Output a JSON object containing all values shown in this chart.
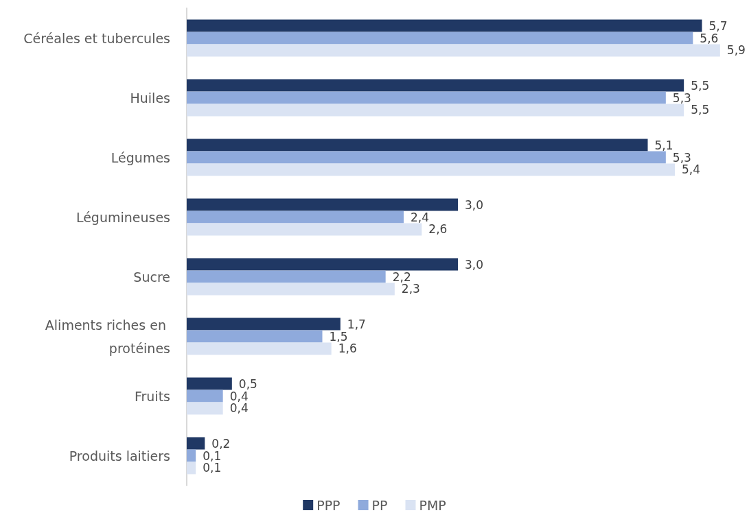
{
  "chart_data": {
    "type": "bar",
    "orientation": "horizontal",
    "legend": "bottom",
    "categories": [
      "Céréales et tubercules",
      "Huiles",
      "Légumes",
      "Légumineuses",
      "Sucre",
      "Aliments riches en protéines",
      "Fruits",
      "Produits laitiers"
    ],
    "series": [
      {
        "name": "PPP",
        "color": "#203864",
        "values": [
          5.7,
          5.5,
          5.1,
          3.0,
          3.0,
          1.7,
          0.5,
          0.2
        ],
        "value_labels": [
          "5,7",
          "5,5",
          "5,1",
          "3,0",
          "3,0",
          "1,7",
          "0,5",
          "0,2"
        ]
      },
      {
        "name": "PP",
        "color": "#8faadc",
        "values": [
          5.6,
          5.3,
          5.3,
          2.4,
          2.2,
          1.5,
          0.4,
          0.1
        ],
        "value_labels": [
          "5,6",
          "5,3",
          "5,3",
          "2,4",
          "2,2",
          "1,5",
          "0,4",
          "0,1"
        ]
      },
      {
        "name": "PMP",
        "color": "#dae3f3",
        "values": [
          5.9,
          5.5,
          5.4,
          2.6,
          2.3,
          1.6,
          0.4,
          0.1
        ],
        "value_labels": [
          "5,9",
          "5,5",
          "5,4",
          "2,6",
          "2,3",
          "1,6",
          "0,4",
          "0,1"
        ]
      }
    ]
  }
}
